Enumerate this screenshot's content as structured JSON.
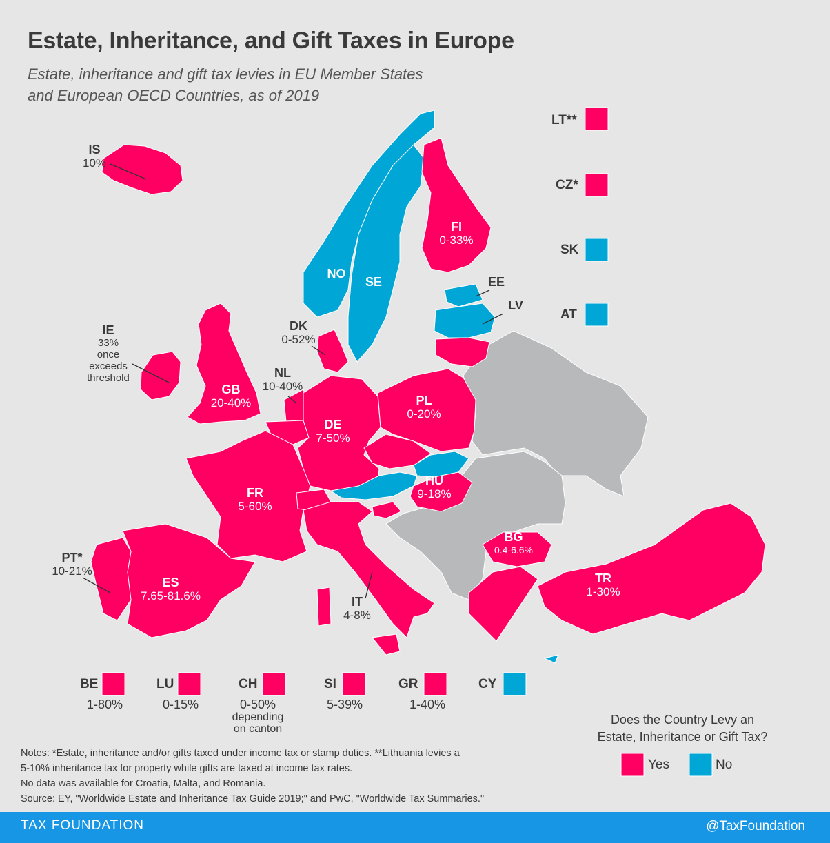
{
  "title": "Estate, Inheritance, and Gift Taxes in Europe",
  "subtitle_line1": "Estate, inheritance and gift tax levies in EU Member States",
  "subtitle_line2": "and European OECD Countries, as of 2019",
  "colors": {
    "yes": "#ff0062",
    "no": "#00a6d6",
    "nodata": "#b8b9bb",
    "background": "#e6e6e6",
    "footer": "#1796e6"
  },
  "map_labels": {
    "IS": {
      "code": "IS",
      "rate": "10%"
    },
    "IE": {
      "code": "IE",
      "rate": "33%",
      "note1": "once",
      "note2": "exceeds",
      "note3": "threshold"
    },
    "GB": {
      "code": "GB",
      "rate": "20-40%"
    },
    "NL": {
      "code": "NL",
      "rate": "10-40%"
    },
    "DK": {
      "code": "DK",
      "rate": "0-52%"
    },
    "NO": {
      "code": "NO"
    },
    "SE": {
      "code": "SE"
    },
    "FI": {
      "code": "FI",
      "rate": "0-33%"
    },
    "EE": {
      "code": "EE"
    },
    "LV": {
      "code": "LV"
    },
    "PL": {
      "code": "PL",
      "rate": "0-20%"
    },
    "DE": {
      "code": "DE",
      "rate": "7-50%"
    },
    "FR": {
      "code": "FR",
      "rate": "5-60%"
    },
    "HU": {
      "code": "HU",
      "rate": "9-18%"
    },
    "BG": {
      "code": "BG",
      "rate": "0.4-6.6%"
    },
    "TR": {
      "code": "TR",
      "rate": "1-30%"
    },
    "PT": {
      "code": "PT*",
      "rate": "10-21%"
    },
    "ES": {
      "code": "ES",
      "rate": "7.65-81.6%"
    },
    "IT": {
      "code": "IT",
      "rate": "4-8%"
    }
  },
  "right_insets": [
    {
      "code": "LT**",
      "status": "yes"
    },
    {
      "code": "CZ*",
      "status": "yes"
    },
    {
      "code": "SK",
      "status": "no"
    },
    {
      "code": "AT",
      "status": "no"
    }
  ],
  "bottom_insets": [
    {
      "code": "BE",
      "status": "yes",
      "rate": "1-80%",
      "sub1": "",
      "sub2": ""
    },
    {
      "code": "LU",
      "status": "yes",
      "rate": "0-15%",
      "sub1": "",
      "sub2": ""
    },
    {
      "code": "CH",
      "status": "yes",
      "rate": "0-50%",
      "sub1": "depending",
      "sub2": "on canton"
    },
    {
      "code": "SI",
      "status": "yes",
      "rate": "5-39%",
      "sub1": "",
      "sub2": ""
    },
    {
      "code": "GR",
      "status": "yes",
      "rate": "1-40%",
      "sub1": "",
      "sub2": ""
    },
    {
      "code": "CY",
      "status": "no",
      "rate": "",
      "sub1": "",
      "sub2": ""
    }
  ],
  "legend": {
    "title_line1": "Does the Country Levy an",
    "title_line2": "Estate, Inheritance or Gift Tax?",
    "yes_label": "Yes",
    "no_label": "No"
  },
  "notes": {
    "line1": "Notes: *Estate, inheritance and/or gifts taxed under income tax or stamp duties. **Lithuania levies a",
    "line2": "5-10% inheritance tax for property while gifts are taxed at income tax rates.",
    "line3": "No data was available for Croatia, Malta, and Romania.",
    "line4": "Source: EY, \"Worldwide Estate and Inheritance Tax Guide 2019;\" and PwC, \"Worldwide Tax Summaries.\""
  },
  "footer": {
    "left": "TAX FOUNDATION",
    "right": "@TaxFoundation"
  }
}
